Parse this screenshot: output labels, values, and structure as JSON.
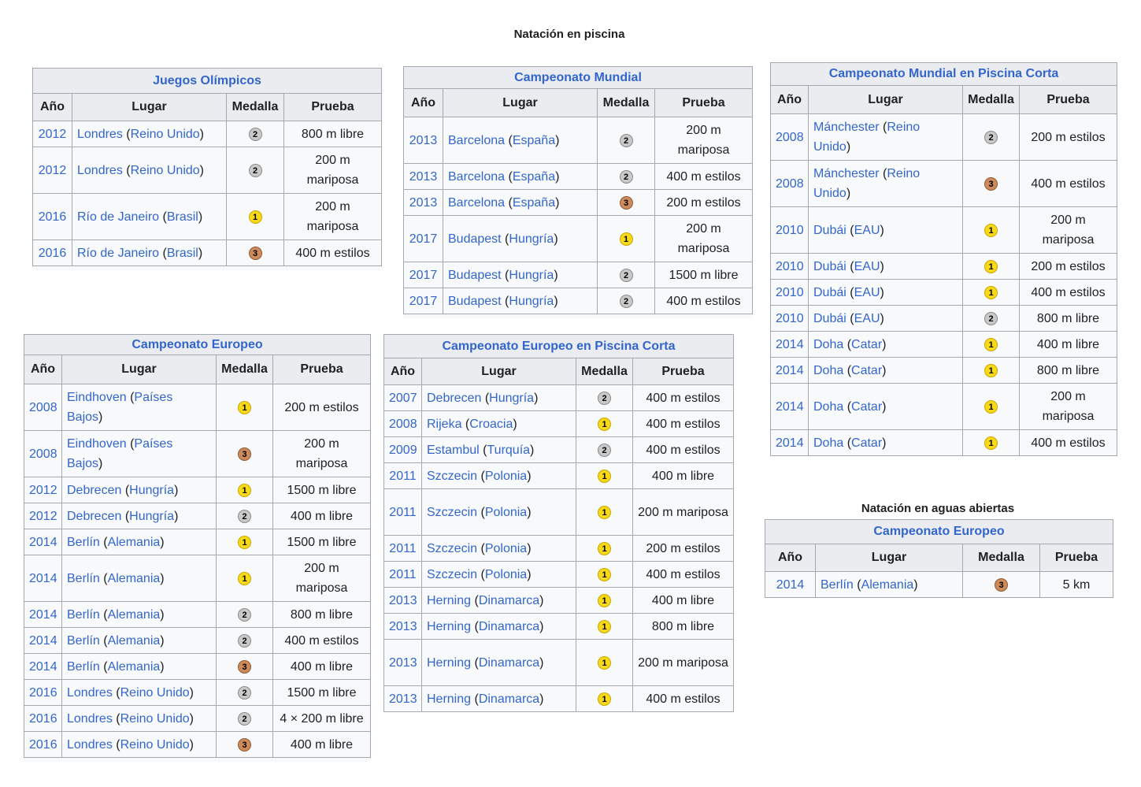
{
  "headings": {
    "pool": "Natación en piscina",
    "open_water": "Natación en aguas abiertas"
  },
  "columns": {
    "year": "Año",
    "place": "Lugar",
    "medal": "Medalla",
    "event": "Prueba"
  },
  "colors": {
    "link": "#3366cc",
    "header_bg": "#eaecf0",
    "gold": "#f7d917",
    "silver": "#c9c9c9",
    "bronze": "#cd8a5a"
  },
  "tables": [
    {
      "id": "juegos-olimpicos",
      "title": "Juegos Olímpicos",
      "rows": [
        {
          "year": "2012",
          "city": "Londres",
          "country": "Reino Unido",
          "medal": "2",
          "event": "800 m libre"
        },
        {
          "year": "2012",
          "city": "Londres",
          "country": "Reino Unido",
          "medal": "2",
          "event": "200 m mariposa"
        },
        {
          "year": "2016",
          "city": "Río de Janeiro",
          "country": "Brasil",
          "medal": "1",
          "event": "200 m mariposa"
        },
        {
          "year": "2016",
          "city": "Río de Janeiro",
          "country": "Brasil",
          "medal": "3",
          "event": "400 m estilos"
        }
      ]
    },
    {
      "id": "campeonato-mundial",
      "title": "Campeonato Mundial",
      "rows": [
        {
          "year": "2013",
          "city": "Barcelona",
          "country": "España",
          "medal": "2",
          "event": "200 m mariposa"
        },
        {
          "year": "2013",
          "city": "Barcelona",
          "country": "España",
          "medal": "2",
          "event": "400 m estilos"
        },
        {
          "year": "2013",
          "city": "Barcelona",
          "country": "España",
          "medal": "3",
          "event": "200 m estilos"
        },
        {
          "year": "2017",
          "city": "Budapest",
          "country": "Hungría",
          "medal": "1",
          "event": "200 m mariposa"
        },
        {
          "year": "2017",
          "city": "Budapest",
          "country": "Hungría",
          "medal": "2",
          "event": "1500 m libre"
        },
        {
          "year": "2017",
          "city": "Budapest",
          "country": "Hungría",
          "medal": "2",
          "event": "400 m estilos"
        }
      ]
    },
    {
      "id": "mundial-piscina-corta",
      "title": "Campeonato Mundial en Piscina Corta",
      "rows": [
        {
          "year": "2008",
          "city": "Mánchester",
          "country": "Reino Unido",
          "medal": "2",
          "event": "200 m estilos"
        },
        {
          "year": "2008",
          "city": "Mánchester",
          "country": "Reino Unido",
          "medal": "3",
          "event": "400 m estilos"
        },
        {
          "year": "2010",
          "city": "Dubái",
          "country": "EAU",
          "medal": "1",
          "event": "200 m mariposa"
        },
        {
          "year": "2010",
          "city": "Dubái",
          "country": "EAU",
          "medal": "1",
          "event": "200 m estilos"
        },
        {
          "year": "2010",
          "city": "Dubái",
          "country": "EAU",
          "medal": "1",
          "event": "400 m estilos"
        },
        {
          "year": "2010",
          "city": "Dubái",
          "country": "EAU",
          "medal": "2",
          "event": "800 m libre"
        },
        {
          "year": "2014",
          "city": "Doha",
          "country": "Catar",
          "medal": "1",
          "event": "400 m libre"
        },
        {
          "year": "2014",
          "city": "Doha",
          "country": "Catar",
          "medal": "1",
          "event": "800 m libre"
        },
        {
          "year": "2014",
          "city": "Doha",
          "country": "Catar",
          "medal": "1",
          "event": "200 m mariposa"
        },
        {
          "year": "2014",
          "city": "Doha",
          "country": "Catar",
          "medal": "1",
          "event": "400 m estilos"
        }
      ]
    },
    {
      "id": "campeonato-europeo",
      "title": "Campeonato Europeo",
      "rows": [
        {
          "year": "2008",
          "city": "Eindhoven",
          "country": "Países Bajos",
          "medal": "1",
          "event": "200 m estilos"
        },
        {
          "year": "2008",
          "city": "Eindhoven",
          "country": "Países Bajos",
          "medal": "3",
          "event": "200 m mariposa"
        },
        {
          "year": "2012",
          "city": "Debrecen",
          "country": "Hungría",
          "medal": "1",
          "event": "1500 m libre"
        },
        {
          "year": "2012",
          "city": "Debrecen",
          "country": "Hungría",
          "medal": "2",
          "event": "400 m libre"
        },
        {
          "year": "2014",
          "city": "Berlín",
          "country": "Alemania",
          "medal": "1",
          "event": "1500 m libre"
        },
        {
          "year": "2014",
          "city": "Berlín",
          "country": "Alemania",
          "medal": "1",
          "event": "200 m mariposa"
        },
        {
          "year": "2014",
          "city": "Berlín",
          "country": "Alemania",
          "medal": "2",
          "event": "800 m libre"
        },
        {
          "year": "2014",
          "city": "Berlín",
          "country": "Alemania",
          "medal": "2",
          "event": "400 m estilos"
        },
        {
          "year": "2014",
          "city": "Berlín",
          "country": "Alemania",
          "medal": "3",
          "event": "400 m libre"
        },
        {
          "year": "2016",
          "city": "Londres",
          "country": "Reino Unido",
          "medal": "2",
          "event": "1500 m libre"
        },
        {
          "year": "2016",
          "city": "Londres",
          "country": "Reino Unido",
          "medal": "2",
          "event": "4 × 200 m libre"
        },
        {
          "year": "2016",
          "city": "Londres",
          "country": "Reino Unido",
          "medal": "3",
          "event": "400 m libre"
        }
      ]
    },
    {
      "id": "europeo-piscina-corta",
      "title": "Campeonato Europeo en Piscina Corta",
      "rows": [
        {
          "year": "2007",
          "city": "Debrecen",
          "country": "Hungría",
          "medal": "2",
          "event": "400 m estilos"
        },
        {
          "year": "2008",
          "city": "Rijeka",
          "country": "Croacia",
          "medal": "1",
          "event": "400 m estilos"
        },
        {
          "year": "2009",
          "city": "Estambul",
          "country": "Turquía",
          "medal": "2",
          "event": "400 m estilos"
        },
        {
          "year": "2011",
          "city": "Szczecin",
          "country": "Polonia",
          "medal": "1",
          "event": "400 m libre"
        },
        {
          "year": "2011",
          "city": "Szczecin",
          "country": "Polonia",
          "medal": "1",
          "event": "200 m mariposa"
        },
        {
          "year": "2011",
          "city": "Szczecin",
          "country": "Polonia",
          "medal": "1",
          "event": "200 m estilos"
        },
        {
          "year": "2011",
          "city": "Szczecin",
          "country": "Polonia",
          "medal": "1",
          "event": "400 m estilos"
        },
        {
          "year": "2013",
          "city": "Herning",
          "country": "Dinamarca",
          "medal": "1",
          "event": "400 m libre"
        },
        {
          "year": "2013",
          "city": "Herning",
          "country": "Dinamarca",
          "medal": "1",
          "event": "800 m libre"
        },
        {
          "year": "2013",
          "city": "Herning",
          "country": "Dinamarca",
          "medal": "1",
          "event": "200 m mariposa"
        },
        {
          "year": "2013",
          "city": "Herning",
          "country": "Dinamarca",
          "medal": "1",
          "event": "400 m estilos"
        }
      ]
    },
    {
      "id": "aguas-abiertas-europeo",
      "title": "Campeonato Europeo",
      "rows": [
        {
          "year": "2014",
          "city": "Berlín",
          "country": "Alemania",
          "medal": "3",
          "event": "5 km"
        }
      ]
    }
  ]
}
